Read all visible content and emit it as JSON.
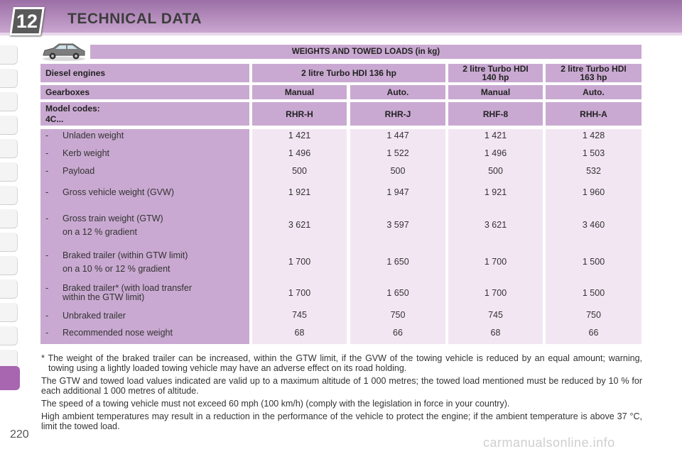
{
  "header": {
    "chapter": "12",
    "title": "TECHNICAL DATA"
  },
  "page_number": "220",
  "watermark": "carmanualsonline.info",
  "icons": {
    "vehicle": "car-icon"
  },
  "colors": {
    "header_band": "#9b6fa6",
    "table_header": "#c9a9d1",
    "table_values": "#f3e6f3",
    "active_tab": "#a865b0"
  },
  "table": {
    "title": "WEIGHTS AND TOWED LOADS (in kg)",
    "engine_label": "Diesel engines",
    "engine_136": "2 litre Turbo HDI 136 hp",
    "engine_140_line1": "2 litre Turbo HDI",
    "engine_140_line2": "140 hp",
    "engine_163_line1": "2 litre Turbo HDI",
    "engine_163_line2": "163 hp",
    "gearbox_label": "Gearboxes",
    "gearboxes": [
      "Manual",
      "Auto.",
      "Manual",
      "Auto."
    ],
    "model_label_line1": "Model codes:",
    "model_label_line2": "4C...",
    "model_codes": [
      "RHR-H",
      "RHR-J",
      "RHF-8",
      "RHH-A"
    ],
    "rows": [
      {
        "dash": "-",
        "label": "Unladen weight",
        "sub": "",
        "values": [
          "1 421",
          "1 447",
          "1 421",
          "1 428"
        ]
      },
      {
        "dash": "-",
        "label": "Kerb weight",
        "sub": "",
        "values": [
          "1 496",
          "1 522",
          "1 496",
          "1 503"
        ]
      },
      {
        "dash": "-",
        "label": "Payload",
        "sub": "",
        "values": [
          "500",
          "500",
          "500",
          "532"
        ]
      },
      {
        "dash": "-",
        "label": "Gross vehicle weight (GVW)",
        "sub": "",
        "values": [
          "1 921",
          "1 947",
          "1 921",
          "1 960"
        ]
      },
      {
        "dash": "-",
        "label": "Gross train weight (GTW)",
        "sub": "on a 12 % gradient",
        "values": [
          "3 621",
          "3 597",
          "3 621",
          "3 460"
        ]
      },
      {
        "dash": "-",
        "label": "Braked trailer (within GTW limit)",
        "sub": "on a 10 % or 12 % gradient",
        "values": [
          "1 700",
          "1 650",
          "1 700",
          "1 500"
        ]
      },
      {
        "dash": "-",
        "label": "Braked trailer* (with load transfer",
        "sub": "within the GTW limit)",
        "values": [
          "1 700",
          "1 650",
          "1 700",
          "1 500"
        ]
      },
      {
        "dash": "-",
        "label": "Unbraked trailer",
        "sub": "",
        "values": [
          "745",
          "750",
          "745",
          "750"
        ]
      },
      {
        "dash": "-",
        "label": "Recommended nose weight",
        "sub": "",
        "values": [
          "68",
          "66",
          "68",
          "66"
        ]
      }
    ]
  },
  "notes": [
    "* The weight of the braked trailer can be increased, within the GTW limit, if the GVW of the towing vehicle is reduced by an equal amount; warning, towing using a lightly loaded towing vehicle may have an adverse effect on its road holding.",
    "The GTW and towed load values indicated are valid up to a maximum altitude of 1 000 metres; the towed load mentioned must be reduced by 10 % for each additional 1 000 metres of altitude.",
    "The speed of a towing vehicle must not exceed 60 mph (100 km/h) (comply with the legislation in force in your country).",
    "High ambient temperatures may result in a reduction in the performance of the vehicle to protect the engine; if the ambient temperature is above 37 °C, limit the towed load."
  ]
}
